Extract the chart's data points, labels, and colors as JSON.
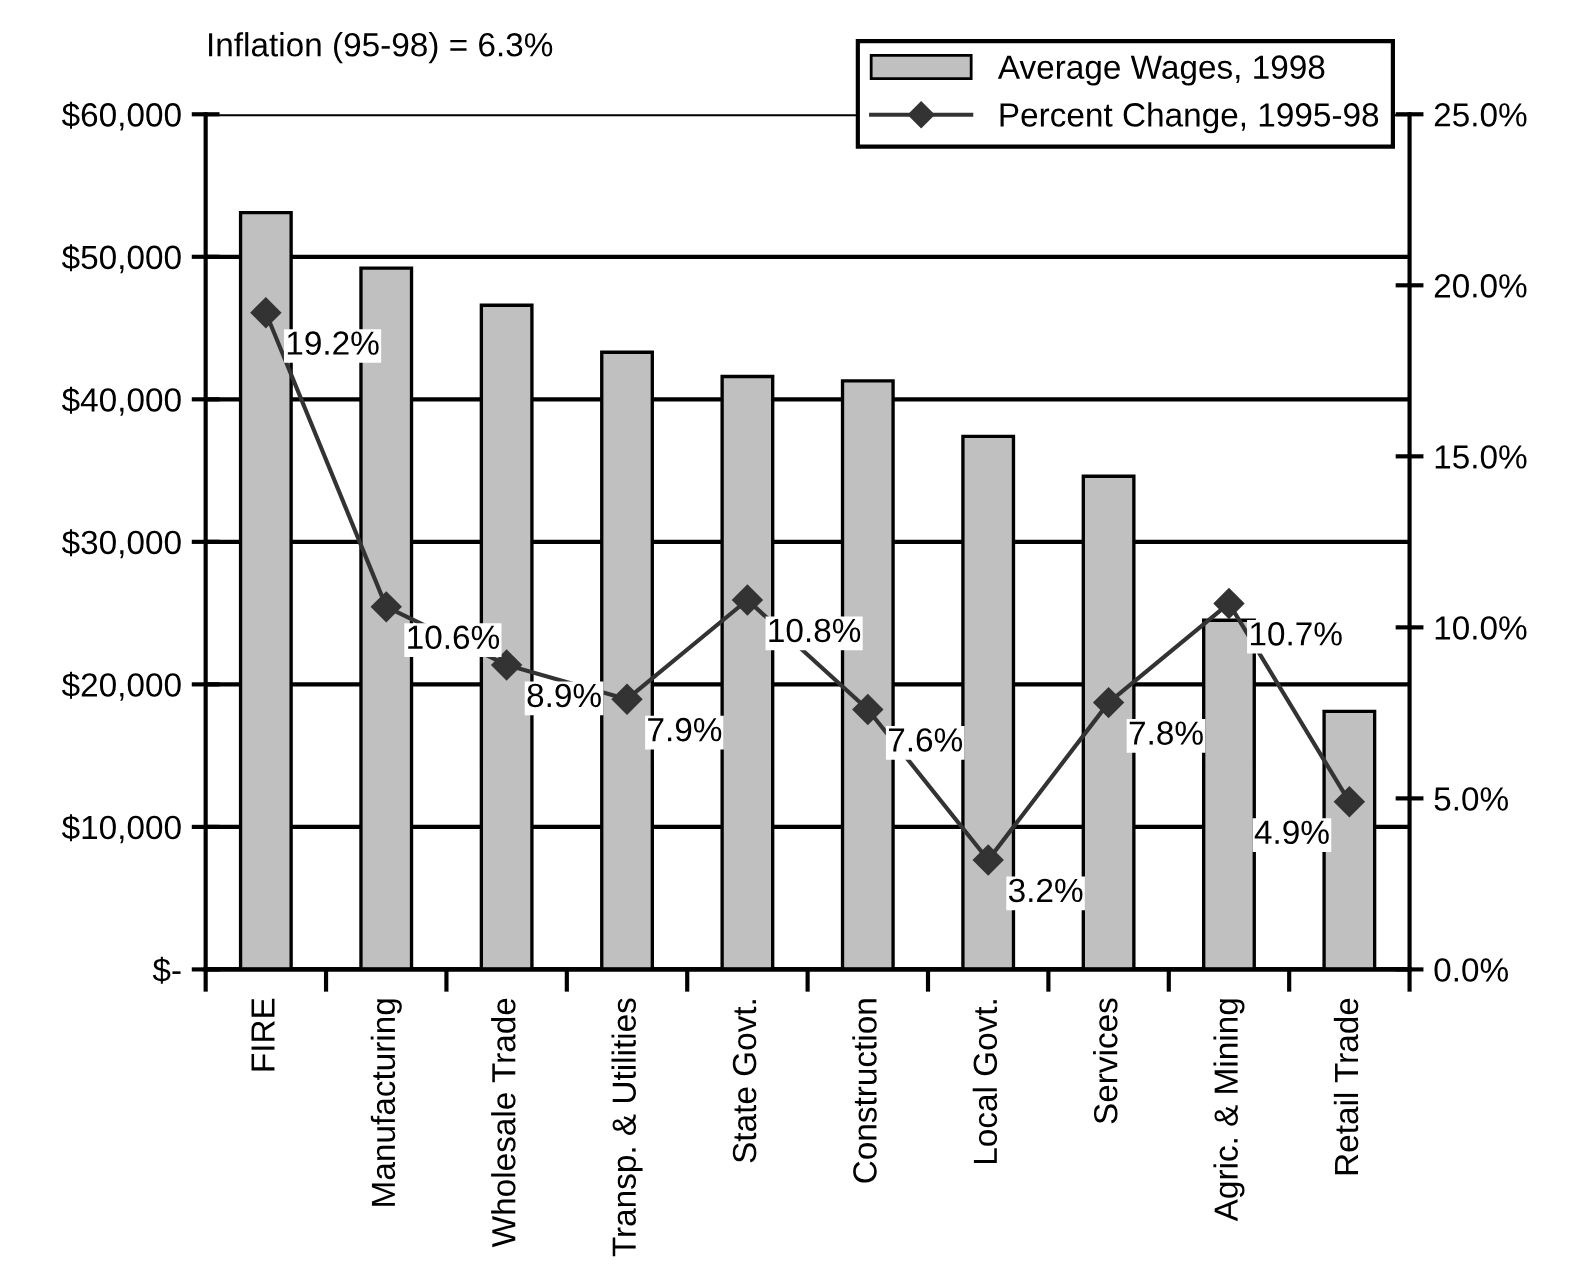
{
  "chart_data": {
    "type": "bar",
    "annotations": [
      "Inflation (95-98) = 6.3%"
    ],
    "categories": [
      "FIRE",
      "Manufacturing",
      "Wholesale Trade",
      "Transp. & Utilities",
      "State Govt.",
      "Construction",
      "Local Govt.",
      "Services",
      "Agric. & Mining",
      "Retail Trade"
    ],
    "series": [
      {
        "name": "Average Wages, 1998",
        "color": "#c0c0c0",
        "values": [
          53100,
          49200,
          46600,
          43300,
          41600,
          41300,
          37400,
          34600,
          24500,
          18100
        ]
      },
      {
        "name": "Percent Change, 1995-98",
        "type": "line",
        "axis": "y2",
        "color": "#333333",
        "marker": "diamond",
        "values": [
          19.2,
          10.6,
          8.9,
          7.9,
          10.8,
          7.6,
          3.2,
          7.8,
          10.7,
          4.9
        ],
        "value_labels": [
          "19.2%",
          "10.6%",
          "8.9%",
          "7.9%",
          "10.8%",
          "7.6%",
          "3.2%",
          "7.8%",
          "10.7%",
          "4.9%"
        ]
      }
    ],
    "ylim": [
      0,
      60000
    ],
    "yticks": [
      {
        "value": 0,
        "label": "$-"
      },
      {
        "value": 10000,
        "label": "$10,000"
      },
      {
        "value": 20000,
        "label": "$20,000"
      },
      {
        "value": 30000,
        "label": "$30,000"
      },
      {
        "value": 40000,
        "label": "$40,000"
      },
      {
        "value": 50000,
        "label": "$50,000"
      },
      {
        "value": 60000,
        "label": "$60,000"
      }
    ],
    "y2lim": [
      0,
      25
    ],
    "y2ticks": [
      {
        "value": 0,
        "label": "0.0%"
      },
      {
        "value": 5,
        "label": "5.0%"
      },
      {
        "value": 10,
        "label": "10.0%"
      },
      {
        "value": 15,
        "label": "15.0%"
      },
      {
        "value": 20,
        "label": "20.0%"
      },
      {
        "value": 25,
        "label": "25.0%"
      }
    ],
    "grid": "y",
    "legend": "top right"
  }
}
